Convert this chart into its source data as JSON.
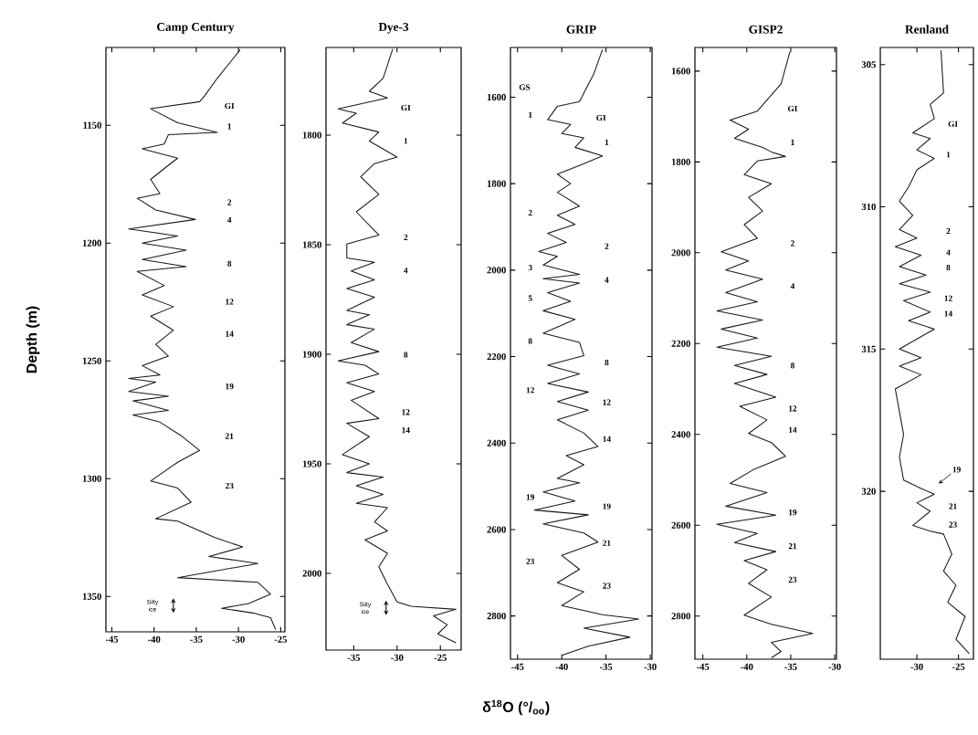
{
  "chart_data": [
    {
      "type": "line",
      "title": "Camp Century",
      "ylabel": "Depth (m)",
      "color": "#1a1a1a",
      "marker": "none",
      "line_style": "solid",
      "xlim": [
        -45.7,
        -24.5
      ],
      "ylim": [
        1365,
        1117
      ],
      "xticks": [
        -45,
        -40,
        -35,
        -30,
        -25
      ],
      "yticks": [
        1150,
        1200,
        1250,
        1300,
        1350
      ],
      "x": [
        -29.8,
        -32.5,
        -34,
        -34.6,
        -40.4,
        -37.2,
        -32.5,
        -38.3,
        -38.8,
        -41.4,
        -37.2,
        -38.3,
        -40.4,
        -39.3,
        -42,
        -39.8,
        -35.1,
        -43,
        -37.2,
        -41.4,
        -36.2,
        -41.4,
        -36.2,
        -42,
        -38.8,
        -41.4,
        -37.7,
        -40.4,
        -37.7,
        -39.8,
        -38.3,
        -41.4,
        -39.3,
        -43,
        -39.8,
        -43,
        -38.3,
        -42.5,
        -38.3,
        -42.5,
        -39.3,
        -36.7,
        -34.6,
        -37.2,
        -40.4,
        -37.2,
        -35.6,
        -39.8,
        -37.2,
        -32.8,
        -29.5,
        -33.5,
        -27.7,
        -37.2,
        -27.7,
        -26.2,
        -28.8,
        -32,
        -28.3,
        -26.2,
        -25.6
      ],
      "values": [
        1118,
        1130,
        1137.5,
        1140,
        1143,
        1149,
        1153,
        1154,
        1158,
        1160,
        1164,
        1167,
        1173,
        1179,
        1181,
        1186,
        1190,
        1194,
        1197,
        1200,
        1203,
        1207,
        1210,
        1212,
        1218,
        1222,
        1227,
        1231,
        1237,
        1243,
        1248,
        1252,
        1256,
        1257.5,
        1259,
        1263,
        1265,
        1267,
        1271,
        1273,
        1276,
        1282,
        1288,
        1293,
        1301,
        1304,
        1310,
        1317,
        1318,
        1325,
        1329,
        1333,
        1336,
        1342,
        1344,
        1349,
        1353,
        1355,
        1357,
        1359,
        1364
      ],
      "annotations": [
        "GI",
        "1",
        "2",
        "4",
        "8",
        "12",
        "14",
        "19",
        "21",
        "23",
        "Silty ice"
      ]
    },
    {
      "type": "line",
      "title": "Dye-3",
      "color": "#1a1a1a",
      "marker": "none",
      "line_style": "solid",
      "xlim": [
        -38.2,
        -22.6
      ],
      "ylim": [
        2035,
        1760
      ],
      "xticks": [
        -35,
        -30,
        -25
      ],
      "yticks": [
        1800,
        1850,
        1900,
        1950,
        2000
      ],
      "x": [
        -30.5,
        -31.6,
        -33.2,
        -31.1,
        -36.8,
        -34.7,
        -36.3,
        -32.1,
        -33.2,
        -30,
        -32.6,
        -34.2,
        -32.1,
        -34.7,
        -32.1,
        -35.8,
        -35.8,
        -32.6,
        -35.3,
        -32.6,
        -35.8,
        -32.6,
        -35.8,
        -33.2,
        -35.8,
        -32.6,
        -35.3,
        -32.1,
        -36.8,
        -33.7,
        -32.1,
        -35.8,
        -32.6,
        -35.3,
        -32.1,
        -35.8,
        -33.2,
        -36.3,
        -33.2,
        -35.8,
        -31.6,
        -34.7,
        -31.6,
        -34.7,
        -31.1,
        -32.6,
        -31.1,
        -33.7,
        -31.1,
        -32.1,
        -31.1,
        -30,
        -28.4,
        -23.2,
        -25.8,
        -24.2,
        -25.3,
        -23.2
      ],
      "values": [
        1760.7,
        1774,
        1780,
        1783,
        1788,
        1790,
        1794.5,
        1798.6,
        1802.7,
        1810,
        1813,
        1819,
        1827,
        1835,
        1845.6,
        1849.7,
        1856,
        1858,
        1862,
        1866,
        1870,
        1874,
        1880,
        1882,
        1886.5,
        1888.5,
        1894.7,
        1898.8,
        1903,
        1905,
        1909,
        1913,
        1917,
        1921,
        1929.4,
        1931.5,
        1937.6,
        1945.8,
        1950,
        1954,
        1956,
        1960,
        1964,
        1968,
        1970,
        1976.5,
        1980.6,
        1984.7,
        1990.8,
        1997,
        2005,
        2013,
        2015,
        2016.4,
        2019.4,
        2023.5,
        2027.6,
        2031.7
      ],
      "annotations": [
        "GI",
        "1",
        "2",
        "4",
        "8",
        "12",
        "14",
        "Silty ice"
      ]
    },
    {
      "type": "line",
      "title": "GRIP",
      "xlabel": "δ$^{18}$O (°/$_{oo}$)",
      "color": "#1a1a1a",
      "marker": "none",
      "line_style": "solid",
      "xlim": [
        -45.8,
        -29.8
      ],
      "ylim": [
        2900,
        1485
      ],
      "xticks": [
        -45,
        -40,
        -35,
        -30
      ],
      "yticks": [
        1600,
        1800,
        2000,
        2200,
        2400,
        2600,
        2800
      ],
      "x": [
        -35.4,
        -36.4,
        -38,
        -40.5,
        -41.6,
        -39,
        -40,
        -37.5,
        -38.5,
        -35.4,
        -38,
        -40.5,
        -39,
        -40.5,
        -38,
        -40.5,
        -38.5,
        -41.6,
        -39.5,
        -42.6,
        -40.5,
        -42.1,
        -38,
        -42.1,
        -38,
        -41.6,
        -39,
        -42.1,
        -38.5,
        -42.1,
        -38,
        -37.5,
        -41.6,
        -38,
        -41.6,
        -37,
        -40.5,
        -37,
        -40.5,
        -37.5,
        -35.9,
        -39.5,
        -37.5,
        -40.5,
        -38,
        -42.1,
        -38.5,
        -43.1,
        -37,
        -42.1,
        -37.5,
        -35.9,
        -40,
        -38,
        -40.5,
        -37.5,
        -40,
        -35.4,
        -31.3,
        -37.5,
        -32.3,
        -37,
        -40
      ],
      "values": [
        1490,
        1547,
        1610,
        1621,
        1652,
        1663,
        1684,
        1694,
        1716,
        1736,
        1758,
        1778,
        1800,
        1820,
        1852,
        1873,
        1894,
        1915,
        1936,
        1957,
        1968,
        1988,
        2010,
        2020,
        2030,
        2052,
        2072,
        2094,
        2114,
        2146,
        2167,
        2198,
        2220,
        2240,
        2262,
        2282,
        2304,
        2324,
        2346,
        2377,
        2408,
        2429,
        2450,
        2482,
        2492,
        2513,
        2534,
        2555,
        2566,
        2587,
        2608,
        2629,
        2660,
        2692,
        2723,
        2744,
        2776,
        2797,
        2807,
        2828,
        2849,
        2870,
        2891
      ],
      "annotations": [
        "GS",
        "1",
        "2",
        "3",
        "5",
        "8",
        "12",
        "19",
        "23",
        "GI",
        "1",
        "2",
        "4",
        "8",
        "12",
        "14",
        "19",
        "21",
        "23"
      ]
    },
    {
      "type": "line",
      "title": "GISP2",
      "color": "#1a1a1a",
      "marker": "none",
      "line_style": "solid",
      "xlim": [
        -45.9,
        -29.8
      ],
      "ylim": [
        2895,
        1548
      ],
      "xticks": [
        -45,
        -40,
        -35,
        -30
      ],
      "yticks": [
        1600,
        1800,
        2000,
        2200,
        2400,
        2600,
        2800
      ],
      "x": [
        -35.1,
        -36.1,
        -38.8,
        -41.9,
        -39.8,
        -41.4,
        -38.2,
        -37.2,
        -35.6,
        -38.8,
        -40.3,
        -37.2,
        -39.8,
        -38.2,
        -40.3,
        -38.8,
        -42.9,
        -39.8,
        -42.4,
        -38.2,
        -42.4,
        -38.8,
        -43.4,
        -38.2,
        -42.9,
        -38.8,
        -43.4,
        -37.2,
        -41.4,
        -37.7,
        -41.4,
        -36.7,
        -40.8,
        -37.7,
        -39.8,
        -37.2,
        -35.6,
        -39.3,
        -41.9,
        -37.7,
        -42.4,
        -36.7,
        -43.4,
        -38.8,
        -41.4,
        -36.7,
        -40.3,
        -37.7,
        -39.8,
        -37.2,
        -40.3,
        -37.2,
        -32.5,
        -37.2,
        -36.1,
        -37.2
      ],
      "values": [
        1558,
        1628,
        1688,
        1708,
        1728,
        1748,
        1768,
        1778,
        1788,
        1798,
        1828,
        1848,
        1878,
        1908,
        1938,
        1968,
        1998,
        2018,
        2038,
        2058,
        2088,
        2108,
        2128,
        2148,
        2168,
        2188,
        2208,
        2228,
        2248,
        2268,
        2288,
        2318,
        2338,
        2368,
        2398,
        2418,
        2448,
        2478,
        2508,
        2528,
        2558,
        2578,
        2598,
        2618,
        2638,
        2658,
        2678,
        2698,
        2728,
        2758,
        2798,
        2818,
        2838,
        2858,
        2878,
        2892
      ],
      "annotations": [
        "GI",
        "1",
        "2",
        "4",
        "8",
        "12",
        "14",
        "19",
        "21",
        "23"
      ]
    },
    {
      "type": "line",
      "title": "Renland",
      "color": "#1a1a1a",
      "marker": "none",
      "line_style": "solid",
      "xlim": [
        -34.4,
        -23.2
      ],
      "ylim": [
        325.9,
        304.4
      ],
      "xticks": [
        -30,
        -25
      ],
      "yticks": [
        305,
        310,
        315,
        320
      ],
      "x": [
        -27.1,
        -26.8,
        -28.4,
        -27.9,
        -30.5,
        -28.4,
        -30,
        -27.9,
        -30,
        -31,
        -32.1,
        -30.5,
        -32.1,
        -30,
        -32.6,
        -29.5,
        -32.1,
        -28.9,
        -32.1,
        -28.4,
        -31.6,
        -28.4,
        -31,
        -27.9,
        -32.1,
        -29.5,
        -32.1,
        -29.5,
        -32.6,
        -32.1,
        -31.6,
        -32.1,
        -31.6,
        -29.5,
        -27.9,
        -30,
        -28.4,
        -30.5,
        -28.4,
        -26.8,
        -25.8,
        -26.8,
        -25.3,
        -26.3,
        -24.2,
        -25.3,
        -23.7
      ],
      "values": [
        304.5,
        306,
        306.4,
        306.9,
        307.4,
        307.6,
        308,
        308.3,
        308.7,
        309.3,
        309.8,
        310.3,
        310.8,
        311.1,
        311.4,
        311.7,
        312.1,
        312.4,
        312.7,
        313,
        313.3,
        313.7,
        314,
        314.3,
        315,
        315.3,
        315.6,
        315.9,
        316.4,
        317.2,
        318,
        318.8,
        319.6,
        319.9,
        320.1,
        320.4,
        320.7,
        321.2,
        321.4,
        321.5,
        322.2,
        322.8,
        323.3,
        323.9,
        324.4,
        325.2,
        325.7
      ],
      "annotations": [
        "GI",
        "1",
        "2",
        "4",
        "8",
        "12",
        "14",
        "19",
        "21",
        "23"
      ]
    }
  ]
}
